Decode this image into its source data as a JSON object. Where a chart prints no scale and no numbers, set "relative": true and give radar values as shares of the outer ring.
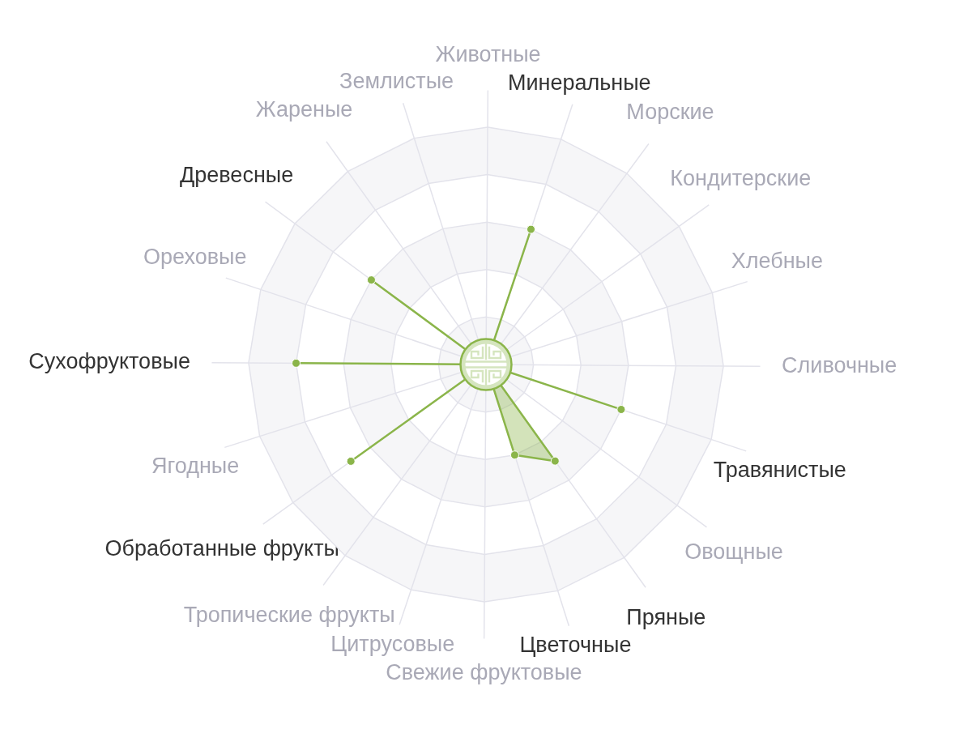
{
  "chart_data": {
    "type": "radar",
    "categories": [
      "Животные",
      "Минеральные",
      "Морские",
      "Кондитерские",
      "Хлебные",
      "Сливочные",
      "Травянистые",
      "Овощные",
      "Пряные",
      "Цветочные",
      "Свежие фруктовые",
      "Цитрусовые",
      "Тропические фрукты",
      "Обработанные фрукты",
      "Ягодные",
      "Сухофруктовые",
      "Ореховые",
      "Древесные",
      "Жареные",
      "Землистые"
    ],
    "relative": true,
    "series": [
      {
        "color": "#8bb54a",
        "values": [
          0,
          0.6,
          0,
          0,
          0,
          0,
          0.6,
          0,
          0.5,
          0.4,
          0,
          0,
          0,
          0.7,
          0,
          0.8,
          0,
          0.6,
          0,
          0
        ]
      }
    ],
    "grid": true,
    "legend": false,
    "marker": "circle"
  }
}
